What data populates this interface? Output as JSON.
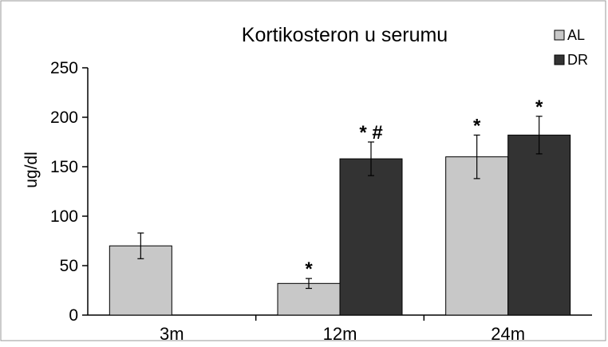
{
  "chart_data": {
    "type": "bar",
    "title": "Kortikosteron u serumu",
    "ylabel": "ug/dl",
    "xlabel": "",
    "categories": [
      "3m",
      "12m",
      "24m"
    ],
    "ylim": [
      0,
      250
    ],
    "yticks": [
      0,
      50,
      100,
      150,
      200,
      250
    ],
    "grid": false,
    "legend_position": "top-right",
    "series": [
      {
        "name": "AL",
        "color": "#c8c8c8",
        "values": [
          70,
          32,
          160
        ],
        "errors": [
          13,
          5,
          22
        ],
        "annotations": [
          "",
          "*",
          "*"
        ]
      },
      {
        "name": "DR",
        "color": "#333333",
        "values": [
          null,
          158,
          182
        ],
        "errors": [
          null,
          17,
          19
        ],
        "annotations": [
          "",
          "* #",
          "*"
        ]
      }
    ]
  }
}
